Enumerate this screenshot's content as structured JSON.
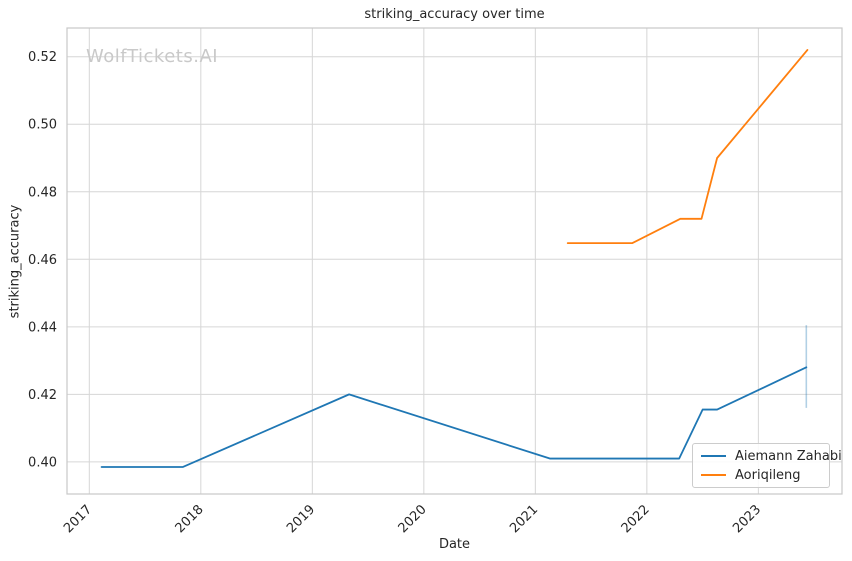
{
  "title": "striking_accuracy over time",
  "watermark": "WolfTickets.AI",
  "legend": {
    "position": "lower right",
    "items": [
      {
        "label": "Aiemann Zahabi",
        "color": "#1f77b4"
      },
      {
        "label": "Aoriqileng",
        "color": "#ff7f0e"
      }
    ]
  },
  "chart_data": {
    "type": "line",
    "title": "striking_accuracy over time",
    "xlabel": "Date",
    "ylabel": "striking_accuracy",
    "xlim": [
      2016.8,
      2023.75
    ],
    "ylim": [
      0.3905,
      0.5285
    ],
    "x_ticks": [
      2017,
      2018,
      2019,
      2020,
      2021,
      2022,
      2023
    ],
    "x_tick_labels": [
      "2017",
      "2018",
      "2019",
      "2020",
      "2021",
      "2022",
      "2023"
    ],
    "y_ticks": [
      0.4,
      0.42,
      0.44,
      0.46,
      0.48,
      0.5,
      0.52
    ],
    "y_tick_labels": [
      "0.40",
      "0.42",
      "0.44",
      "0.46",
      "0.48",
      "0.50",
      "0.52"
    ],
    "grid": true,
    "grid_color": "#d6d6d6",
    "spine_color": "#c8c8c8",
    "series": [
      {
        "name": "Aiemann Zahabi",
        "color": "#1f77b4",
        "points": [
          [
            2017.11,
            0.3985
          ],
          [
            2017.84,
            0.3985
          ],
          [
            2019.33,
            0.42
          ],
          [
            2021.13,
            0.401
          ],
          [
            2022.29,
            0.401
          ],
          [
            2022.5,
            0.4155
          ],
          [
            2022.63,
            0.4155
          ],
          [
            2023.43,
            0.428
          ]
        ]
      },
      {
        "name": "Aoriqileng",
        "color": "#ff7f0e",
        "points": [
          [
            2021.29,
            0.4648
          ],
          [
            2021.87,
            0.4648
          ],
          [
            2022.3,
            0.472
          ],
          [
            2022.49,
            0.472
          ],
          [
            2022.63,
            0.49
          ],
          [
            2023.44,
            0.522
          ]
        ]
      }
    ],
    "error_bar": {
      "series": "Aiemann Zahabi",
      "color": "#1f77b4",
      "opacity": 0.35,
      "x": 2023.43,
      "y_low": 0.416,
      "y_high": 0.4405
    }
  }
}
